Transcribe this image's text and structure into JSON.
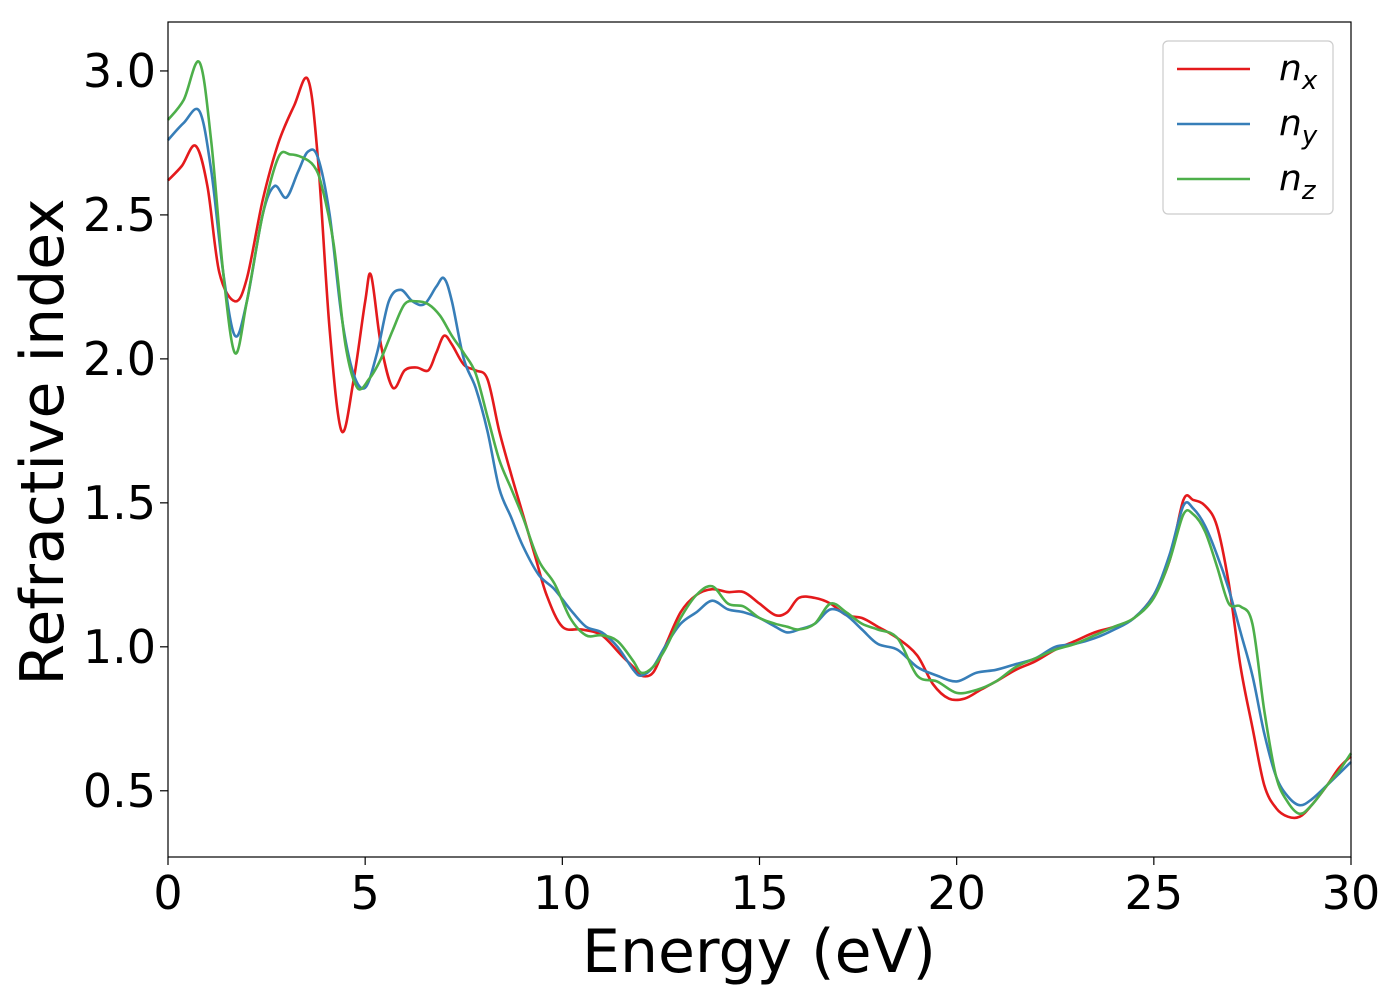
{
  "chart_data": {
    "type": "line",
    "title": "",
    "xlabel": "Energy (eV)",
    "ylabel": "Refractive index",
    "xlim": [
      0,
      30
    ],
    "ylim": [
      0.27,
      3.17
    ],
    "xticks": [
      0,
      5,
      10,
      15,
      20,
      25,
      30
    ],
    "yticks": [
      0.5,
      1.0,
      1.5,
      2.0,
      2.5,
      3.0
    ],
    "xtick_labels": [
      "0",
      "5",
      "10",
      "15",
      "20",
      "25",
      "30"
    ],
    "ytick_labels": [
      "0.5",
      "1.0",
      "1.5",
      "2.0",
      "2.5",
      "3.0"
    ],
    "grid": false,
    "legend_position": "top-right",
    "series": [
      {
        "name": "n",
        "subscript": "x",
        "color": "#e41a1c",
        "x": [
          0,
          0.35,
          0.7,
          1.0,
          1.3,
          1.7,
          2.0,
          2.4,
          2.8,
          3.2,
          3.55,
          3.8,
          4.1,
          4.4,
          4.7,
          5.0,
          5.15,
          5.4,
          5.7,
          6.0,
          6.3,
          6.6,
          6.8,
          7.0,
          7.2,
          7.5,
          7.8,
          8.1,
          8.4,
          8.7,
          9.0,
          9.3,
          9.6,
          10.0,
          10.5,
          11.0,
          11.5,
          11.8,
          12.0,
          12.3,
          12.6,
          13.0,
          13.4,
          13.8,
          14.2,
          14.6,
          15.0,
          15.4,
          15.7,
          16.0,
          16.4,
          16.8,
          17.2,
          17.6,
          18.0,
          18.5,
          19.0,
          19.4,
          19.8,
          20.2,
          20.6,
          21.0,
          21.5,
          22.0,
          22.5,
          23.0,
          23.5,
          24.0,
          24.5,
          25.0,
          25.4,
          25.75,
          26.0,
          26.3,
          26.6,
          26.9,
          27.2,
          27.5,
          27.8,
          28.1,
          28.4,
          28.7,
          29.0,
          29.4,
          29.7,
          30.0
        ],
        "y": [
          2.62,
          2.67,
          2.74,
          2.6,
          2.3,
          2.2,
          2.28,
          2.55,
          2.75,
          2.88,
          2.97,
          2.7,
          2.1,
          1.75,
          1.92,
          2.2,
          2.29,
          2.05,
          1.9,
          1.96,
          1.97,
          1.96,
          2.02,
          2.08,
          2.05,
          1.98,
          1.96,
          1.93,
          1.75,
          1.6,
          1.46,
          1.32,
          1.18,
          1.07,
          1.06,
          1.04,
          0.97,
          0.93,
          0.9,
          0.91,
          1.0,
          1.12,
          1.18,
          1.2,
          1.19,
          1.19,
          1.15,
          1.11,
          1.12,
          1.17,
          1.17,
          1.15,
          1.11,
          1.1,
          1.07,
          1.03,
          0.97,
          0.87,
          0.82,
          0.82,
          0.85,
          0.88,
          0.92,
          0.95,
          0.99,
          1.02,
          1.05,
          1.07,
          1.1,
          1.18,
          1.3,
          1.51,
          1.51,
          1.49,
          1.42,
          1.22,
          0.93,
          0.72,
          0.52,
          0.44,
          0.41,
          0.41,
          0.45,
          0.52,
          0.58,
          0.62
        ]
      },
      {
        "name": "n",
        "subscript": "y",
        "color": "#377eb8",
        "x": [
          0,
          0.4,
          0.8,
          1.1,
          1.4,
          1.7,
          2.0,
          2.4,
          2.7,
          3.0,
          3.3,
          3.55,
          3.8,
          4.1,
          4.4,
          4.7,
          5.0,
          5.3,
          5.6,
          5.9,
          6.2,
          6.5,
          6.8,
          7.0,
          7.2,
          7.5,
          7.8,
          8.1,
          8.4,
          8.7,
          9.0,
          9.4,
          9.8,
          10.2,
          10.6,
          11.0,
          11.4,
          11.8,
          12.0,
          12.3,
          12.6,
          13.0,
          13.4,
          13.8,
          14.2,
          14.6,
          15.0,
          15.4,
          15.7,
          16.0,
          16.4,
          16.8,
          17.2,
          17.6,
          18.0,
          18.5,
          19.0,
          19.5,
          20.0,
          20.5,
          21.0,
          21.5,
          22.0,
          22.5,
          23.0,
          23.5,
          24.0,
          24.5,
          25.0,
          25.4,
          25.75,
          26.0,
          26.3,
          26.6,
          26.9,
          27.2,
          27.5,
          27.8,
          28.1,
          28.4,
          28.7,
          29.0,
          29.4,
          29.7,
          30.0
        ],
        "y": [
          2.76,
          2.82,
          2.86,
          2.65,
          2.3,
          2.08,
          2.2,
          2.5,
          2.6,
          2.56,
          2.65,
          2.72,
          2.7,
          2.5,
          2.15,
          1.95,
          1.9,
          2.02,
          2.2,
          2.24,
          2.2,
          2.19,
          2.25,
          2.28,
          2.2,
          2.0,
          1.9,
          1.75,
          1.55,
          1.45,
          1.35,
          1.25,
          1.2,
          1.13,
          1.07,
          1.05,
          1.0,
          0.92,
          0.9,
          0.93,
          1.0,
          1.08,
          1.12,
          1.16,
          1.13,
          1.12,
          1.1,
          1.07,
          1.05,
          1.06,
          1.08,
          1.13,
          1.11,
          1.06,
          1.01,
          0.99,
          0.93,
          0.9,
          0.88,
          0.91,
          0.92,
          0.94,
          0.96,
          1.0,
          1.01,
          1.03,
          1.06,
          1.1,
          1.18,
          1.32,
          1.49,
          1.48,
          1.42,
          1.32,
          1.2,
          1.05,
          0.9,
          0.7,
          0.55,
          0.48,
          0.45,
          0.47,
          0.52,
          0.56,
          0.6
        ]
      },
      {
        "name": "n",
        "subscript": "z",
        "color": "#4daf4a",
        "x": [
          0,
          0.4,
          0.8,
          1.1,
          1.4,
          1.7,
          2.0,
          2.4,
          2.8,
          3.1,
          3.4,
          3.7,
          3.9,
          4.2,
          4.5,
          4.8,
          5.1,
          5.4,
          5.7,
          6.0,
          6.3,
          6.6,
          6.9,
          7.2,
          7.5,
          7.8,
          8.1,
          8.4,
          8.7,
          9.0,
          9.4,
          9.8,
          10.2,
          10.6,
          11.0,
          11.4,
          11.8,
          12.0,
          12.3,
          12.6,
          13.0,
          13.4,
          13.8,
          14.2,
          14.6,
          15.0,
          15.4,
          15.7,
          16.0,
          16.4,
          16.8,
          17.2,
          17.6,
          18.0,
          18.5,
          19.0,
          19.5,
          20.0,
          20.5,
          21.0,
          21.5,
          22.0,
          22.5,
          23.0,
          23.5,
          24.0,
          24.5,
          25.0,
          25.4,
          25.75,
          26.0,
          26.3,
          26.6,
          26.9,
          27.2,
          27.5,
          27.8,
          28.1,
          28.4,
          28.7,
          29.0,
          29.4,
          29.7,
          30.0
        ],
        "y": [
          2.83,
          2.9,
          3.03,
          2.75,
          2.3,
          2.02,
          2.2,
          2.5,
          2.7,
          2.71,
          2.7,
          2.67,
          2.6,
          2.4,
          2.05,
          1.9,
          1.93,
          2.0,
          2.1,
          2.19,
          2.2,
          2.19,
          2.15,
          2.08,
          2.02,
          1.95,
          1.8,
          1.65,
          1.55,
          1.45,
          1.3,
          1.22,
          1.1,
          1.04,
          1.04,
          1.02,
          0.95,
          0.91,
          0.93,
          0.99,
          1.1,
          1.18,
          1.21,
          1.15,
          1.14,
          1.1,
          1.08,
          1.07,
          1.06,
          1.08,
          1.15,
          1.12,
          1.08,
          1.06,
          1.03,
          0.9,
          0.88,
          0.84,
          0.85,
          0.88,
          0.93,
          0.96,
          0.99,
          1.01,
          1.04,
          1.07,
          1.1,
          1.17,
          1.3,
          1.46,
          1.46,
          1.4,
          1.28,
          1.15,
          1.14,
          1.08,
          0.78,
          0.55,
          0.46,
          0.42,
          0.45,
          0.52,
          0.57,
          0.63
        ]
      }
    ]
  }
}
